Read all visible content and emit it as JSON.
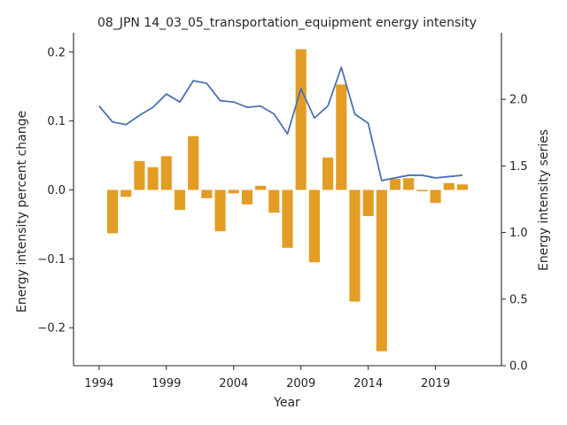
{
  "chart_data": {
    "type": "bar+line",
    "title": "08_JPN 14_03_05_transportation_equipment energy intensity",
    "xlabel": "Year",
    "ylabel_left": "Energy intensity percent change",
    "ylabel_right": "Energy intensity series",
    "xlim": [
      1992.1,
      2023.9
    ],
    "ylim_left": [
      -0.255,
      0.228
    ],
    "ylim_right": [
      0.0,
      2.5
    ],
    "xticks": [
      "1994",
      "1999",
      "2004",
      "2009",
      "2014",
      "2019"
    ],
    "yticks_left": [
      "−0.2",
      "−0.1",
      "0.0",
      "0.1",
      "0.2"
    ],
    "yticks_right": [
      "0.0",
      "0.5",
      "1.0",
      "1.5",
      "2.0"
    ],
    "grid": false,
    "colors": {
      "bar": "#e39d24",
      "line": "#4c72b0"
    },
    "series": [
      {
        "kind": "bar",
        "axis": "left",
        "x": [
          1995,
          1996,
          1997,
          1998,
          1999,
          2000,
          2001,
          2002,
          2003,
          2004,
          2005,
          2006,
          2007,
          2008,
          2009,
          2010,
          2011,
          2012,
          2013,
          2014,
          2015,
          2016,
          2017,
          2018,
          2019,
          2020,
          2021
        ],
        "values": [
          -0.063,
          -0.01,
          0.042,
          0.033,
          0.049,
          -0.029,
          0.078,
          -0.012,
          -0.06,
          -0.005,
          -0.021,
          0.006,
          -0.033,
          -0.084,
          0.204,
          -0.105,
          0.047,
          0.153,
          -0.162,
          -0.038,
          -0.234,
          0.016,
          0.017,
          -0.002,
          -0.019,
          0.01,
          0.008
        ]
      },
      {
        "kind": "line",
        "axis": "right",
        "x": [
          1994,
          1995,
          1996,
          1997,
          1998,
          1999,
          2000,
          2001,
          2002,
          2003,
          2004,
          2005,
          2006,
          2007,
          2008,
          2009,
          2010,
          2011,
          2012,
          2013,
          2014,
          2015,
          2016,
          2017,
          2018,
          2019,
          2020,
          2021
        ],
        "values": [
          1.95,
          1.83,
          1.81,
          1.88,
          1.94,
          2.04,
          1.98,
          2.14,
          2.12,
          1.99,
          1.98,
          1.94,
          1.95,
          1.89,
          1.74,
          2.08,
          1.86,
          1.95,
          2.24,
          1.89,
          1.82,
          1.39,
          1.41,
          1.43,
          1.43,
          1.41,
          1.42,
          1.43
        ]
      }
    ]
  }
}
